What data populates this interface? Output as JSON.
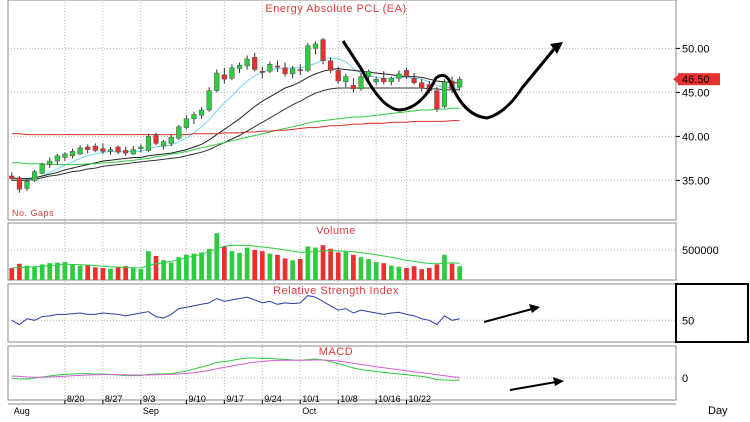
{
  "chart_data": {
    "type": "candlestick",
    "title": "Energy Absolute PCL (EA)",
    "price_panel": {
      "ylim": [
        30.5,
        55.5
      ],
      "yticks": [
        35.0,
        40.0,
        45.0,
        50.0
      ],
      "ytick_labels": [
        "35.00",
        "40.00",
        "45.00",
        "50.00"
      ],
      "last_price": 46.5,
      "last_price_label": "46.50",
      "note": "No. Gaps",
      "grid": true,
      "candles": [
        {
          "o": 35.5,
          "h": 35.9,
          "l": 35.0,
          "c": 35.2
        },
        {
          "o": 35.3,
          "h": 35.5,
          "l": 33.6,
          "c": 34.0
        },
        {
          "o": 34.1,
          "h": 35.2,
          "l": 33.8,
          "c": 34.9
        },
        {
          "o": 35.0,
          "h": 36.2,
          "l": 34.8,
          "c": 36.0
        },
        {
          "o": 35.8,
          "h": 37.0,
          "l": 35.7,
          "c": 36.8
        },
        {
          "o": 36.8,
          "h": 37.6,
          "l": 36.4,
          "c": 37.2
        },
        {
          "o": 37.2,
          "h": 38.0,
          "l": 36.8,
          "c": 37.8
        },
        {
          "o": 37.6,
          "h": 38.2,
          "l": 37.2,
          "c": 38.0
        },
        {
          "o": 37.8,
          "h": 38.6,
          "l": 37.5,
          "c": 38.3
        },
        {
          "o": 38.0,
          "h": 39.0,
          "l": 37.9,
          "c": 38.7
        },
        {
          "o": 38.8,
          "h": 39.1,
          "l": 38.1,
          "c": 38.5
        },
        {
          "o": 38.9,
          "h": 39.2,
          "l": 38.2,
          "c": 38.4
        },
        {
          "o": 38.6,
          "h": 39.2,
          "l": 38.0,
          "c": 38.3
        },
        {
          "o": 38.3,
          "h": 38.8,
          "l": 37.9,
          "c": 38.5
        },
        {
          "o": 38.8,
          "h": 39.0,
          "l": 38.0,
          "c": 38.2
        },
        {
          "o": 38.4,
          "h": 38.8,
          "l": 37.8,
          "c": 38.1
        },
        {
          "o": 38.0,
          "h": 38.9,
          "l": 37.9,
          "c": 38.5
        },
        {
          "o": 38.6,
          "h": 39.1,
          "l": 38.2,
          "c": 38.8
        },
        {
          "o": 38.4,
          "h": 40.3,
          "l": 38.2,
          "c": 40.0
        },
        {
          "o": 40.1,
          "h": 40.4,
          "l": 39.0,
          "c": 39.2
        },
        {
          "o": 38.9,
          "h": 39.6,
          "l": 38.5,
          "c": 39.4
        },
        {
          "o": 39.2,
          "h": 40.2,
          "l": 38.9,
          "c": 39.9
        },
        {
          "o": 39.8,
          "h": 41.3,
          "l": 39.6,
          "c": 41.1
        },
        {
          "o": 41.0,
          "h": 42.4,
          "l": 40.8,
          "c": 42.0
        },
        {
          "o": 42.0,
          "h": 42.8,
          "l": 41.4,
          "c": 42.5
        },
        {
          "o": 42.4,
          "h": 43.3,
          "l": 42.0,
          "c": 43.0
        },
        {
          "o": 43.0,
          "h": 45.6,
          "l": 42.8,
          "c": 45.2
        },
        {
          "o": 45.2,
          "h": 47.6,
          "l": 45.0,
          "c": 47.2
        },
        {
          "o": 47.0,
          "h": 47.8,
          "l": 46.0,
          "c": 46.5
        },
        {
          "o": 46.6,
          "h": 48.2,
          "l": 46.4,
          "c": 47.8
        },
        {
          "o": 47.7,
          "h": 48.4,
          "l": 47.2,
          "c": 48.1
        },
        {
          "o": 48.0,
          "h": 49.2,
          "l": 47.6,
          "c": 48.8
        },
        {
          "o": 49.0,
          "h": 49.5,
          "l": 47.4,
          "c": 47.6
        },
        {
          "o": 47.4,
          "h": 47.9,
          "l": 46.6,
          "c": 47.3
        },
        {
          "o": 47.4,
          "h": 48.5,
          "l": 47.2,
          "c": 48.2
        },
        {
          "o": 48.0,
          "h": 48.6,
          "l": 47.3,
          "c": 47.9
        },
        {
          "o": 47.8,
          "h": 48.4,
          "l": 46.8,
          "c": 47.1
        },
        {
          "o": 47.1,
          "h": 48.0,
          "l": 46.6,
          "c": 47.7
        },
        {
          "o": 47.6,
          "h": 48.2,
          "l": 47.0,
          "c": 47.5
        },
        {
          "o": 47.5,
          "h": 50.6,
          "l": 47.3,
          "c": 50.3
        },
        {
          "o": 50.0,
          "h": 50.8,
          "l": 49.3,
          "c": 50.5
        },
        {
          "o": 51.0,
          "h": 51.2,
          "l": 48.2,
          "c": 48.6
        },
        {
          "o": 48.6,
          "h": 49.0,
          "l": 47.2,
          "c": 47.5
        },
        {
          "o": 47.5,
          "h": 47.9,
          "l": 46.0,
          "c": 46.3
        },
        {
          "o": 46.2,
          "h": 47.1,
          "l": 45.6,
          "c": 46.8
        },
        {
          "o": 45.8,
          "h": 46.6,
          "l": 45.0,
          "c": 45.4
        },
        {
          "o": 45.4,
          "h": 47.2,
          "l": 45.2,
          "c": 46.8
        },
        {
          "o": 46.8,
          "h": 47.6,
          "l": 46.3,
          "c": 47.4
        },
        {
          "o": 46.2,
          "h": 46.8,
          "l": 45.8,
          "c": 46.5
        },
        {
          "o": 46.6,
          "h": 47.4,
          "l": 45.9,
          "c": 46.2
        },
        {
          "o": 46.2,
          "h": 46.8,
          "l": 45.8,
          "c": 46.6
        },
        {
          "o": 46.6,
          "h": 47.5,
          "l": 46.2,
          "c": 47.1
        },
        {
          "o": 47.5,
          "h": 47.8,
          "l": 46.5,
          "c": 46.8
        },
        {
          "o": 46.6,
          "h": 47.2,
          "l": 45.9,
          "c": 46.1
        },
        {
          "o": 46.1,
          "h": 46.5,
          "l": 45.1,
          "c": 45.5
        },
        {
          "o": 45.9,
          "h": 46.3,
          "l": 44.9,
          "c": 45.2
        },
        {
          "o": 45.2,
          "h": 45.6,
          "l": 42.8,
          "c": 43.1
        },
        {
          "o": 43.4,
          "h": 46.5,
          "l": 43.2,
          "c": 46.2
        },
        {
          "o": 46.3,
          "h": 46.8,
          "l": 44.9,
          "c": 45.3
        },
        {
          "o": 45.6,
          "h": 46.8,
          "l": 45.2,
          "c": 46.5
        }
      ],
      "moving_averages": [
        {
          "color": "#6fd6ee",
          "values": [
            35.3,
            35.2,
            35.1,
            35.2,
            35.5,
            35.9,
            36.3,
            36.7,
            37.1,
            37.5,
            37.8,
            38.0,
            38.2,
            38.3,
            38.3,
            38.3,
            38.3,
            38.3,
            38.6,
            38.8,
            38.9,
            39.0,
            39.4,
            39.8,
            40.4,
            41.1,
            41.9,
            42.9,
            43.8,
            44.6,
            45.5,
            46.3,
            46.9,
            47.3,
            47.6,
            47.7,
            47.7,
            47.8,
            47.8,
            48.0,
            48.3,
            48.7,
            48.9,
            48.8,
            48.5,
            47.7,
            47.2,
            46.9,
            46.7,
            46.6,
            46.6,
            46.7,
            46.7,
            46.6,
            46.5,
            46.2,
            45.8,
            45.6,
            45.5,
            45.5
          ]
        },
        {
          "color": "#222222",
          "values": [
            35.2,
            35.2,
            35.2,
            35.3,
            35.5,
            35.7,
            35.9,
            36.2,
            36.4,
            36.6,
            36.8,
            37.0,
            37.2,
            37.3,
            37.4,
            37.5,
            37.6,
            37.6,
            37.8,
            37.9,
            38.0,
            38.1,
            38.3,
            38.5,
            38.8,
            39.1,
            39.6,
            40.2,
            40.8,
            41.4,
            42.0,
            42.7,
            43.4,
            44.0,
            44.5,
            45.0,
            45.5,
            45.8,
            46.2,
            46.7,
            47.1,
            47.4,
            47.6,
            47.7,
            47.6,
            47.5,
            47.4,
            47.3,
            47.2,
            47.1,
            47.0,
            46.9,
            46.8,
            46.8,
            46.7,
            46.5,
            46.3,
            46.2,
            46.1,
            46.1
          ]
        },
        {
          "color": "#333333",
          "values": [
            35.0,
            35.0,
            35.0,
            35.1,
            35.3,
            35.5,
            35.6,
            35.8,
            36.0,
            36.1,
            36.3,
            36.4,
            36.6,
            36.7,
            36.8,
            36.9,
            37.0,
            37.1,
            37.2,
            37.3,
            37.4,
            37.5,
            37.6,
            37.8,
            38.0,
            38.2,
            38.5,
            38.9,
            39.3,
            39.7,
            40.1,
            40.6,
            41.1,
            41.6,
            42.1,
            42.6,
            43.1,
            43.6,
            44.0,
            44.5,
            44.9,
            45.2,
            45.4,
            45.5,
            45.5,
            45.5,
            45.5,
            45.5,
            45.5,
            45.5,
            45.5,
            45.5,
            45.5,
            45.5,
            45.5,
            45.4,
            45.4,
            45.3,
            45.3,
            45.3
          ]
        },
        {
          "color": "#2ecc40",
          "values": [
            37.0,
            37.0,
            36.9,
            36.9,
            36.9,
            36.8,
            36.8,
            36.8,
            36.8,
            36.8,
            36.9,
            36.9,
            37.0,
            37.0,
            37.1,
            37.2,
            37.3,
            37.4,
            37.5,
            37.7,
            37.8,
            38.0,
            38.1,
            38.3,
            38.5,
            38.7,
            38.9,
            39.1,
            39.3,
            39.5,
            39.7,
            39.9,
            40.1,
            40.3,
            40.5,
            40.7,
            40.9,
            41.1,
            41.3,
            41.5,
            41.7,
            41.8,
            41.9,
            42.0,
            42.1,
            42.2,
            42.2,
            42.3,
            42.4,
            42.5,
            42.6,
            42.7,
            42.8,
            42.9,
            43.0,
            43.0,
            43.1,
            43.1,
            43.2,
            43.2
          ]
        },
        {
          "color": "#d0312d",
          "values": [
            40.3,
            40.3,
            40.2,
            40.2,
            40.2,
            40.2,
            40.2,
            40.2,
            40.2,
            40.2,
            40.2,
            40.2,
            40.2,
            40.2,
            40.2,
            40.2,
            40.2,
            40.2,
            40.2,
            40.2,
            40.2,
            40.2,
            40.2,
            40.2,
            40.3,
            40.3,
            40.3,
            40.3,
            40.4,
            40.4,
            40.4,
            40.5,
            40.5,
            40.6,
            40.6,
            40.7,
            40.7,
            40.8,
            40.9,
            41.0,
            41.0,
            41.1,
            41.2,
            41.2,
            41.3,
            41.4,
            41.4,
            41.5,
            41.5,
            41.5,
            41.6,
            41.6,
            41.6,
            41.7,
            41.7,
            41.7,
            41.7,
            41.7,
            41.8,
            41.8
          ]
        }
      ]
    },
    "volume_panel": {
      "title": "Volume",
      "ylim": [
        0,
        950000
      ],
      "ytick_labels": [
        "500000"
      ],
      "yticks": [
        500000
      ],
      "values": [
        200000,
        270000,
        240000,
        220000,
        260000,
        280000,
        290000,
        300000,
        260000,
        240000,
        250000,
        210000,
        200000,
        190000,
        210000,
        230000,
        200000,
        180000,
        480000,
        400000,
        330000,
        290000,
        380000,
        420000,
        440000,
        460000,
        520000,
        780000,
        560000,
        480000,
        450000,
        540000,
        500000,
        480000,
        440000,
        420000,
        360000,
        330000,
        350000,
        560000,
        540000,
        580000,
        520000,
        460000,
        480000,
        420000,
        380000,
        350000,
        300000,
        280000,
        240000,
        220000,
        200000,
        230000,
        180000,
        200000,
        260000,
        420000,
        270000,
        230000
      ],
      "avg_values": [
        200000,
        210000,
        215000,
        220000,
        230000,
        240000,
        250000,
        260000,
        260000,
        255000,
        250000,
        240000,
        230000,
        220000,
        215000,
        210000,
        205000,
        200000,
        240000,
        270000,
        290000,
        310000,
        340000,
        370000,
        400000,
        430000,
        470000,
        520000,
        560000,
        580000,
        580000,
        575000,
        565000,
        550000,
        535000,
        520000,
        500000,
        480000,
        460000,
        465000,
        475000,
        485000,
        490000,
        485000,
        480000,
        470000,
        455000,
        440000,
        420000,
        400000,
        380000,
        355000,
        330000,
        310000,
        290000,
        275000,
        270000,
        280000,
        285000,
        280000
      ]
    },
    "rsi_panel": {
      "title": "Relative Strength Index",
      "ylim": [
        20,
        100
      ],
      "yticks": [
        50
      ],
      "ytick_labels": [
        "50"
      ],
      "values": [
        50,
        44,
        52,
        50,
        55,
        56,
        58,
        58,
        59,
        60,
        58,
        58,
        60,
        59,
        58,
        56,
        58,
        60,
        62,
        55,
        53,
        58,
        66,
        68,
        70,
        72,
        74,
        80,
        76,
        78,
        80,
        82,
        78,
        74,
        76,
        72,
        74,
        73,
        74,
        84,
        82,
        76,
        70,
        64,
        66,
        60,
        64,
        62,
        60,
        58,
        60,
        61,
        58,
        56,
        52,
        50,
        44,
        56,
        50,
        52
      ]
    },
    "macd_panel": {
      "title": "MACD",
      "ylim": [
        -1.1,
        1.6
      ],
      "yticks": [
        0
      ],
      "ytick_labels": [
        "0"
      ],
      "macd_values": [
        0.0,
        -0.05,
        -0.05,
        0.0,
        0.05,
        0.1,
        0.15,
        0.18,
        0.2,
        0.22,
        0.22,
        0.2,
        0.2,
        0.18,
        0.15,
        0.12,
        0.12,
        0.12,
        0.18,
        0.2,
        0.2,
        0.22,
        0.28,
        0.35,
        0.45,
        0.55,
        0.65,
        0.78,
        0.82,
        0.88,
        0.95,
        1.0,
        1.0,
        0.98,
        0.98,
        0.95,
        0.93,
        0.9,
        0.88,
        0.92,
        0.95,
        0.9,
        0.82,
        0.72,
        0.62,
        0.5,
        0.42,
        0.38,
        0.32,
        0.28,
        0.24,
        0.2,
        0.16,
        0.12,
        0.08,
        0.02,
        -0.08,
        -0.1,
        -0.12,
        -0.1
      ],
      "signal_values": [
        0.1,
        0.08,
        0.05,
        0.04,
        0.04,
        0.05,
        0.07,
        0.09,
        0.11,
        0.13,
        0.15,
        0.16,
        0.17,
        0.17,
        0.17,
        0.16,
        0.15,
        0.15,
        0.15,
        0.16,
        0.17,
        0.18,
        0.2,
        0.23,
        0.27,
        0.32,
        0.38,
        0.46,
        0.53,
        0.6,
        0.67,
        0.74,
        0.79,
        0.83,
        0.86,
        0.88,
        0.89,
        0.89,
        0.89,
        0.89,
        0.9,
        0.9,
        0.88,
        0.85,
        0.8,
        0.74,
        0.68,
        0.62,
        0.56,
        0.51,
        0.46,
        0.41,
        0.36,
        0.31,
        0.27,
        0.22,
        0.16,
        0.11,
        0.06,
        0.03
      ]
    },
    "x_axis": {
      "date_labels": [
        {
          "label": "8/20",
          "index": 7
        },
        {
          "label": "8/27",
          "index": 12
        },
        {
          "label": "9/3",
          "index": 17
        },
        {
          "label": "9/10",
          "index": 23
        },
        {
          "label": "9/17",
          "index": 28
        },
        {
          "label": "9/24",
          "index": 33
        },
        {
          "label": "10/1",
          "index": 38
        },
        {
          "label": "10/8",
          "index": 43
        },
        {
          "label": "10/16",
          "index": 48
        },
        {
          "label": "10/22",
          "index": 52
        }
      ],
      "month_labels": [
        {
          "label": "Aug",
          "index": 0
        },
        {
          "label": "Sep",
          "index": 17
        },
        {
          "label": "Oct",
          "index": 38
        }
      ],
      "unit_label": "Day"
    }
  }
}
